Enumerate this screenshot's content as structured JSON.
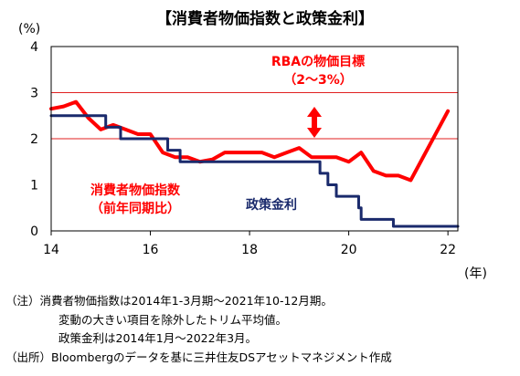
{
  "title": "【消費者物価指数と政策金利】",
  "chart_data": {
    "type": "line",
    "y_unit_label": "(%)",
    "x_unit_label": "(年)",
    "xlim": [
      14,
      22.2
    ],
    "ylim": [
      0,
      4
    ],
    "x_ticks": [
      {
        "value": 14,
        "label": "14"
      },
      {
        "value": 16,
        "label": "16"
      },
      {
        "value": 18,
        "label": "18"
      },
      {
        "value": 20,
        "label": "20"
      },
      {
        "value": 22,
        "label": "22"
      }
    ],
    "y_ticks": [
      {
        "value": 0,
        "label": "0"
      },
      {
        "value": 1,
        "label": "1"
      },
      {
        "value": 2,
        "label": "2"
      },
      {
        "value": 3,
        "label": "3"
      },
      {
        "value": 4,
        "label": "4"
      }
    ],
    "reference_lines": [
      {
        "y": 2,
        "color": "#e02020"
      },
      {
        "y": 3,
        "color": "#e02020"
      }
    ],
    "series": [
      {
        "name": "消費者物価指数（前年同期比）",
        "color": "#ff0000",
        "step": false,
        "points": [
          [
            14.0,
            2.65
          ],
          [
            14.25,
            2.7
          ],
          [
            14.5,
            2.8
          ],
          [
            14.75,
            2.45
          ],
          [
            15.0,
            2.2
          ],
          [
            15.25,
            2.3
          ],
          [
            15.5,
            2.2
          ],
          [
            15.75,
            2.1
          ],
          [
            16.0,
            2.1
          ],
          [
            16.25,
            1.7
          ],
          [
            16.5,
            1.6
          ],
          [
            16.75,
            1.6
          ],
          [
            17.0,
            1.5
          ],
          [
            17.25,
            1.55
          ],
          [
            17.5,
            1.7
          ],
          [
            17.75,
            1.7
          ],
          [
            18.0,
            1.7
          ],
          [
            18.25,
            1.7
          ],
          [
            18.5,
            1.6
          ],
          [
            18.75,
            1.7
          ],
          [
            19.0,
            1.8
          ],
          [
            19.25,
            1.6
          ],
          [
            19.5,
            1.6
          ],
          [
            19.75,
            1.6
          ],
          [
            20.0,
            1.5
          ],
          [
            20.25,
            1.7
          ],
          [
            20.5,
            1.3
          ],
          [
            20.75,
            1.2
          ],
          [
            21.0,
            1.2
          ],
          [
            21.25,
            1.1
          ],
          [
            21.5,
            1.6
          ],
          [
            21.75,
            2.1
          ],
          [
            22.0,
            2.6
          ]
        ]
      },
      {
        "name": "政策金利",
        "color": "#1a2a6c",
        "step": true,
        "points": [
          [
            14.0,
            2.5
          ],
          [
            15.1,
            2.25
          ],
          [
            15.4,
            2.0
          ],
          [
            16.35,
            1.75
          ],
          [
            16.6,
            1.5
          ],
          [
            19.42,
            1.25
          ],
          [
            19.58,
            1.0
          ],
          [
            19.75,
            0.75
          ],
          [
            20.2,
            0.5
          ],
          [
            20.25,
            0.25
          ],
          [
            20.9,
            0.1
          ],
          [
            22.2,
            0.1
          ]
        ]
      }
    ]
  },
  "annotations": {
    "rba_target_line1": "RBAの物価目標",
    "rba_target_line2": "（2～3%）",
    "cpi_label_line1": "消費者物価指数",
    "cpi_label_line2": "（前年同期比）",
    "rate_label": "政策金利",
    "arrow_color": "#ff0000"
  },
  "notes": {
    "line1": "（注）消費者物価指数は2014年1-3月期～2021年10-12月期。",
    "line2": "変動の大きい項目を除外したトリム平均値。",
    "line3": "政策金利は2014年1月～2022年3月。",
    "line4": "（出所）Bloombergのデータを基に三井住友DSアセットマネジメント作成"
  }
}
